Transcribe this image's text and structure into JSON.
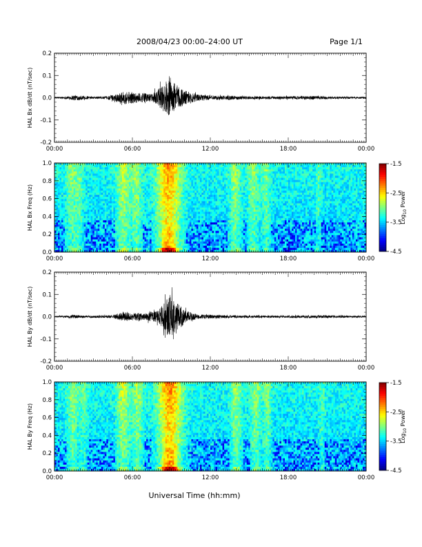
{
  "header": {
    "title": "2008/04/23  00:00–24:00 UT",
    "page": "Page 1/1"
  },
  "footer": {
    "xlabel": "Universal Time (hh:mm)"
  },
  "colorbar": {
    "label_main": "Log",
    "label_sub": "10",
    "label_end": " Power",
    "ticks": [
      "-1.5",
      "-2.5",
      "-3.5",
      "-4.5"
    ],
    "range": [
      -4.5,
      -1.5
    ]
  },
  "chart_data": [
    {
      "type": "line",
      "ylabel": "HAL Bx dB/dt (nT/sec)",
      "x_ticks": [
        "00:00",
        "06:00",
        "12:00",
        "18:00",
        "00:00"
      ],
      "y_ticks": [
        "0.2",
        "0.1",
        "0.0",
        "-0.1",
        "-0.2"
      ],
      "xlim": [
        0,
        24
      ],
      "ylim": [
        -0.2,
        0.2
      ],
      "envelope": [
        {
          "t": 0.0,
          "a": 0.003
        },
        {
          "t": 1.0,
          "a": 0.006
        },
        {
          "t": 1.5,
          "a": 0.012
        },
        {
          "t": 2.0,
          "a": 0.01
        },
        {
          "t": 2.8,
          "a": 0.005
        },
        {
          "t": 4.0,
          "a": 0.006
        },
        {
          "t": 5.0,
          "a": 0.02
        },
        {
          "t": 5.5,
          "a": 0.03
        },
        {
          "t": 6.0,
          "a": 0.025
        },
        {
          "t": 7.0,
          "a": 0.02
        },
        {
          "t": 7.5,
          "a": 0.015
        },
        {
          "t": 8.0,
          "a": 0.04
        },
        {
          "t": 8.7,
          "a": 0.08
        },
        {
          "t": 9.2,
          "a": 0.07
        },
        {
          "t": 9.8,
          "a": 0.04
        },
        {
          "t": 10.5,
          "a": 0.025
        },
        {
          "t": 11.0,
          "a": 0.015
        },
        {
          "t": 12.0,
          "a": 0.01
        },
        {
          "t": 14.0,
          "a": 0.008
        },
        {
          "t": 16.0,
          "a": 0.006
        },
        {
          "t": 20.0,
          "a": 0.008
        },
        {
          "t": 21.0,
          "a": 0.006
        },
        {
          "t": 24.0,
          "a": 0.004
        }
      ]
    },
    {
      "type": "heatmap",
      "ylabel": "HAL Bx Freq (Hz)",
      "x_ticks": [
        "00:00",
        "06:00",
        "12:00",
        "18:00",
        "00:00"
      ],
      "y_ticks": [
        "1.0",
        "0.8",
        "0.6",
        "0.4",
        "0.2",
        "0.0"
      ],
      "xlim": [
        0,
        24
      ],
      "ylim": [
        0,
        1
      ],
      "zlim": [
        -4.5,
        -1.5
      ],
      "bands": [
        {
          "t": 1.3,
          "w": 0.4,
          "p": 0.8
        },
        {
          "t": 1.9,
          "w": 0.3,
          "p": 0.7
        },
        {
          "t": 5.3,
          "w": 0.5,
          "p": 1.2
        },
        {
          "t": 6.3,
          "w": 0.4,
          "p": 1.0
        },
        {
          "t": 8.8,
          "w": 0.9,
          "p": 2.2
        },
        {
          "t": 13.9,
          "w": 0.4,
          "p": 1.0
        },
        {
          "t": 15.3,
          "w": 0.4,
          "p": 0.9
        },
        {
          "t": 16.3,
          "w": 0.3,
          "p": 0.8
        },
        {
          "t": 20.3,
          "w": 0.2,
          "p": 0.5
        }
      ]
    },
    {
      "type": "line",
      "ylabel": "HAL By dB/dt (nT/sec)",
      "x_ticks": [
        "00:00",
        "06:00",
        "12:00",
        "18:00",
        "00:00"
      ],
      "y_ticks": [
        "0.2",
        "0.1",
        "0.0",
        "-0.1",
        "-0.2"
      ],
      "xlim": [
        0,
        24
      ],
      "ylim": [
        -0.2,
        0.2
      ],
      "envelope": [
        {
          "t": 0.0,
          "a": 0.003
        },
        {
          "t": 1.0,
          "a": 0.005
        },
        {
          "t": 1.5,
          "a": 0.008
        },
        {
          "t": 2.5,
          "a": 0.005
        },
        {
          "t": 4.5,
          "a": 0.006
        },
        {
          "t": 5.2,
          "a": 0.02
        },
        {
          "t": 6.0,
          "a": 0.018
        },
        {
          "t": 7.0,
          "a": 0.015
        },
        {
          "t": 8.0,
          "a": 0.03
        },
        {
          "t": 8.8,
          "a": 0.09
        },
        {
          "t": 9.4,
          "a": 0.075
        },
        {
          "t": 10.0,
          "a": 0.03
        },
        {
          "t": 11.0,
          "a": 0.01
        },
        {
          "t": 14.0,
          "a": 0.006
        },
        {
          "t": 16.0,
          "a": 0.005
        },
        {
          "t": 20.5,
          "a": 0.006
        },
        {
          "t": 24.0,
          "a": 0.004
        }
      ]
    },
    {
      "type": "heatmap",
      "ylabel": "HAL By Freq (Hz)",
      "x_ticks": [
        "00:00",
        "06:00",
        "12:00",
        "18:00",
        "00:00"
      ],
      "y_ticks": [
        "1.0",
        "0.8",
        "0.6",
        "0.4",
        "0.2",
        "0.0"
      ],
      "xlim": [
        0,
        24
      ],
      "ylim": [
        0,
        1
      ],
      "zlim": [
        -4.5,
        -1.5
      ],
      "bands": [
        {
          "t": 1.4,
          "w": 0.4,
          "p": 0.9
        },
        {
          "t": 2.2,
          "w": 0.3,
          "p": 0.6
        },
        {
          "t": 5.3,
          "w": 0.5,
          "p": 1.2
        },
        {
          "t": 6.4,
          "w": 0.4,
          "p": 1.0
        },
        {
          "t": 8.9,
          "w": 0.9,
          "p": 2.3
        },
        {
          "t": 14.0,
          "w": 0.4,
          "p": 1.0
        },
        {
          "t": 15.5,
          "w": 0.4,
          "p": 0.9
        },
        {
          "t": 16.4,
          "w": 0.3,
          "p": 0.8
        },
        {
          "t": 20.6,
          "w": 0.2,
          "p": 0.5
        }
      ]
    }
  ]
}
